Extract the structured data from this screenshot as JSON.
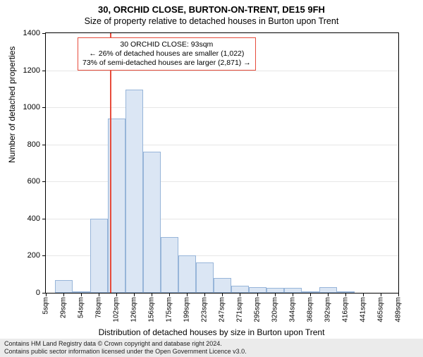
{
  "title": "30, ORCHID CLOSE, BURTON-ON-TRENT, DE15 9FH",
  "subtitle": "Size of property relative to detached houses in Burton upon Trent",
  "ylabel": "Number of detached properties",
  "xlabel": "Distribution of detached houses by size in Burton upon Trent",
  "footer_line1": "Contains HM Land Registry data © Crown copyright and database right 2024.",
  "footer_line2": "Contains public sector information licensed under the Open Government Licence v3.0.",
  "chart": {
    "type": "histogram",
    "background_color": "#ffffff",
    "grid_color": "#e6e6e6",
    "bar_fill": "#dbe6f4",
    "bar_border": "#97b5d9",
    "marker_line_color": "#e74c3c",
    "annotation_border": "#e74c3c",
    "ylim": [
      0,
      1400
    ],
    "ytick_step": 200,
    "yticks": [
      0,
      200,
      400,
      600,
      800,
      1000,
      1200,
      1400
    ],
    "xticks": [
      "5sqm",
      "29sqm",
      "54sqm",
      "78sqm",
      "102sqm",
      "126sqm",
      "156sqm",
      "175sqm",
      "199sqm",
      "223sqm",
      "247sqm",
      "271sqm",
      "295sqm",
      "320sqm",
      "344sqm",
      "368sqm",
      "392sqm",
      "416sqm",
      "441sqm",
      "465sqm",
      "489sqm"
    ],
    "bars": [
      {
        "x": 29,
        "value": 70
      },
      {
        "x": 54,
        "value": 5
      },
      {
        "x": 78,
        "value": 400
      },
      {
        "x": 102,
        "value": 940
      },
      {
        "x": 126,
        "value": 1095
      },
      {
        "x": 156,
        "value": 760
      },
      {
        "x": 175,
        "value": 300
      },
      {
        "x": 199,
        "value": 200
      },
      {
        "x": 223,
        "value": 165
      },
      {
        "x": 247,
        "value": 80
      },
      {
        "x": 271,
        "value": 40
      },
      {
        "x": 295,
        "value": 30
      },
      {
        "x": 320,
        "value": 25
      },
      {
        "x": 344,
        "value": 25
      },
      {
        "x": 368,
        "value": 5
      },
      {
        "x": 392,
        "value": 30
      },
      {
        "x": 416,
        "value": 2
      }
    ],
    "xrange": [
      5,
      489
    ],
    "marker_x": 93,
    "bar_width_ratio": 1.0
  },
  "annotation": {
    "line1": "30 ORCHID CLOSE: 93sqm",
    "line2": "← 26% of detached houses are smaller (1,022)",
    "line3": "73% of semi-detached houses are larger (2,871) →"
  }
}
